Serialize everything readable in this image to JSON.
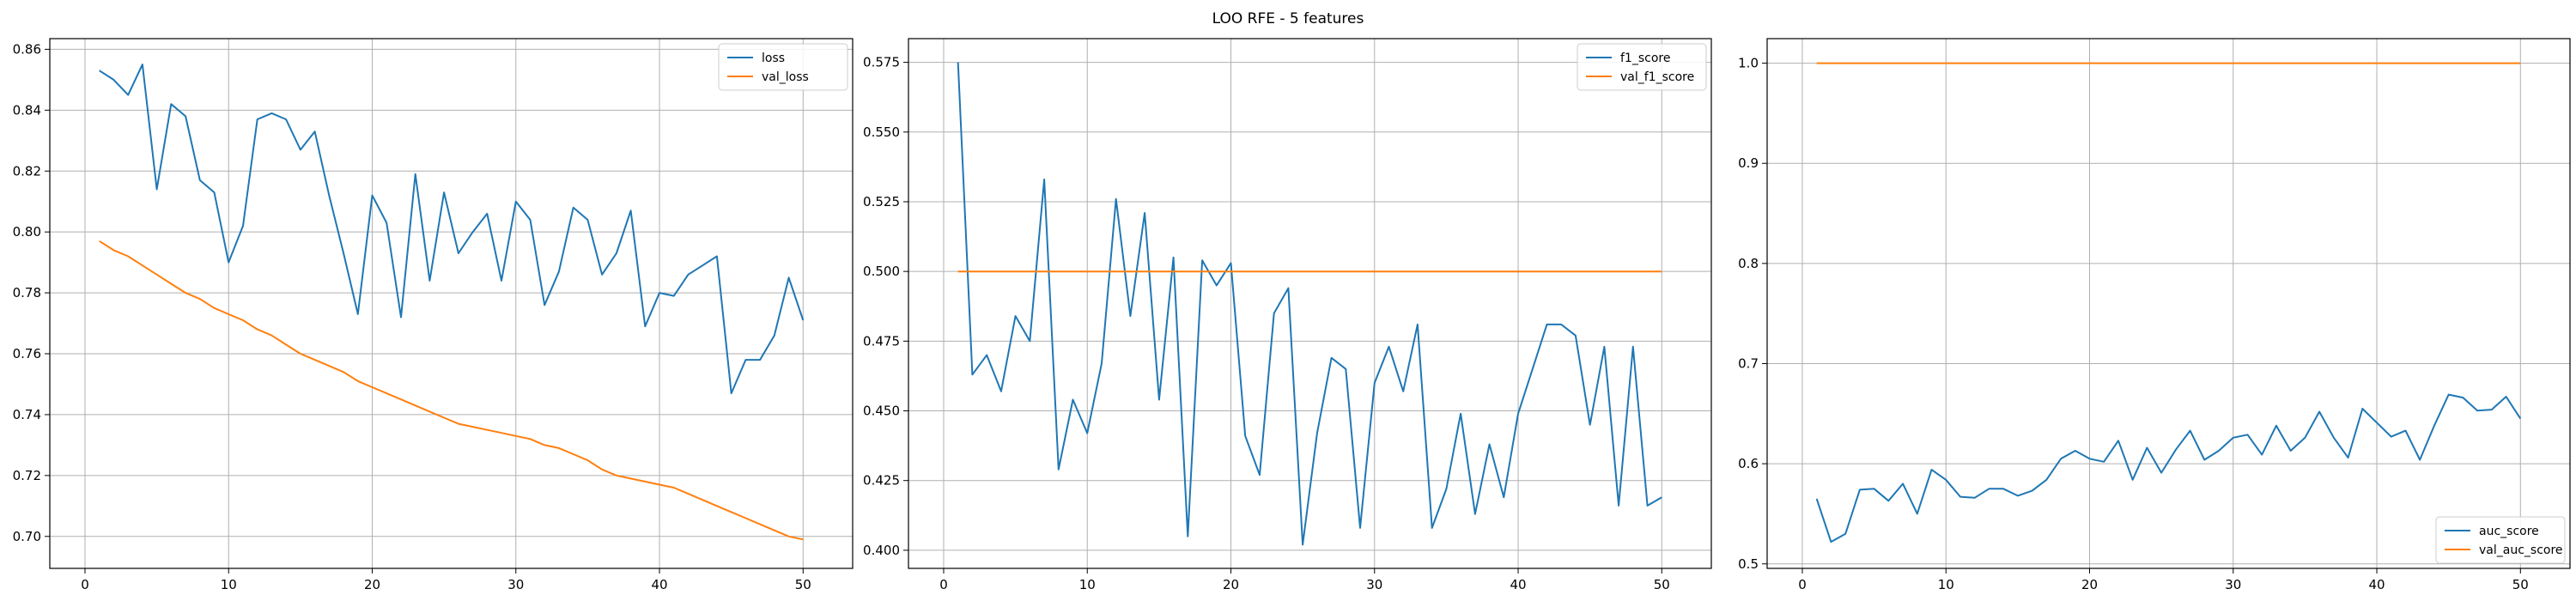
{
  "figure": {
    "suptitle": "LOO RFE - 5 features",
    "colors": {
      "series1": "#1f77b4",
      "series2": "#ff7f0e",
      "grid": "#b0b0b0",
      "axis": "#000000"
    }
  },
  "chart_data": [
    {
      "type": "line",
      "title": "",
      "xlabel": "",
      "ylabel": "",
      "grid": true,
      "legend_position": "top-right",
      "xlim": [
        -2.45,
        53.45
      ],
      "ylim": [
        0.6895,
        0.8635
      ],
      "xticks": [
        0,
        10,
        20,
        30,
        40,
        50
      ],
      "yticks": [
        0.7,
        0.72,
        0.74,
        0.76,
        0.78,
        0.8,
        0.82,
        0.84,
        0.86
      ],
      "ytick_decimals": 2,
      "x": [
        1,
        2,
        3,
        4,
        5,
        6,
        7,
        8,
        9,
        10,
        11,
        12,
        13,
        14,
        15,
        16,
        17,
        18,
        19,
        20,
        21,
        22,
        23,
        24,
        25,
        26,
        27,
        28,
        29,
        30,
        31,
        32,
        33,
        34,
        35,
        36,
        37,
        38,
        39,
        40,
        41,
        42,
        43,
        44,
        45,
        46,
        47,
        48,
        49,
        50
      ],
      "series": [
        {
          "name": "loss",
          "color": "#1f77b4",
          "values": [
            0.853,
            0.85,
            0.845,
            0.855,
            0.814,
            0.842,
            0.838,
            0.817,
            0.813,
            0.79,
            0.802,
            0.837,
            0.839,
            0.837,
            0.827,
            0.833,
            0.812,
            0.793,
            0.773,
            0.812,
            0.803,
            0.772,
            0.819,
            0.784,
            0.813,
            0.793,
            0.8,
            0.806,
            0.784,
            0.81,
            0.804,
            0.776,
            0.787,
            0.808,
            0.804,
            0.786,
            0.793,
            0.807,
            0.769,
            0.78,
            0.779,
            0.786,
            0.789,
            0.792,
            0.747,
            0.758,
            0.758,
            0.766,
            0.785,
            0.771
          ]
        },
        {
          "name": "val_loss",
          "color": "#ff7f0e",
          "values": [
            0.797,
            0.794,
            0.792,
            0.789,
            0.786,
            0.783,
            0.78,
            0.778,
            0.775,
            0.773,
            0.771,
            0.768,
            0.766,
            0.763,
            0.76,
            0.758,
            0.756,
            0.754,
            0.751,
            0.749,
            0.747,
            0.745,
            0.743,
            0.741,
            0.739,
            0.737,
            0.736,
            0.735,
            0.734,
            0.733,
            0.732,
            0.73,
            0.729,
            0.727,
            0.725,
            0.722,
            0.72,
            0.719,
            0.718,
            0.717,
            0.716,
            0.714,
            0.712,
            0.71,
            0.708,
            0.706,
            0.704,
            0.702,
            0.7,
            0.699
          ]
        }
      ]
    },
    {
      "type": "line",
      "title": "",
      "xlabel": "",
      "ylabel": "",
      "grid": true,
      "legend_position": "top-right",
      "xlim": [
        -2.45,
        53.45
      ],
      "ylim": [
        0.3935,
        0.5835
      ],
      "xticks": [
        0,
        10,
        20,
        30,
        40,
        50
      ],
      "yticks": [
        0.4,
        0.425,
        0.45,
        0.475,
        0.5,
        0.525,
        0.55,
        0.575
      ],
      "ytick_decimals": 3,
      "x": [
        1,
        2,
        3,
        4,
        5,
        6,
        7,
        8,
        9,
        10,
        11,
        12,
        13,
        14,
        15,
        16,
        17,
        18,
        19,
        20,
        21,
        22,
        23,
        24,
        25,
        26,
        27,
        28,
        29,
        30,
        31,
        32,
        33,
        34,
        35,
        36,
        37,
        38,
        39,
        40,
        41,
        42,
        43,
        44,
        45,
        46,
        47,
        48,
        49,
        50
      ],
      "series": [
        {
          "name": "f1_score",
          "color": "#1f77b4",
          "values": [
            0.575,
            0.463,
            0.47,
            0.457,
            0.484,
            0.475,
            0.533,
            0.429,
            0.454,
            0.442,
            0.467,
            0.526,
            0.484,
            0.521,
            0.454,
            0.505,
            0.405,
            0.504,
            0.495,
            0.503,
            0.441,
            0.427,
            0.485,
            0.494,
            0.402,
            0.442,
            0.469,
            0.465,
            0.408,
            0.46,
            0.473,
            0.457,
            0.481,
            0.408,
            0.422,
            0.449,
            0.413,
            0.438,
            0.419,
            0.449,
            0.465,
            0.481,
            0.481,
            0.477,
            0.445,
            0.473,
            0.416,
            0.473,
            0.416,
            0.419
          ]
        },
        {
          "name": "val_f1_score",
          "color": "#ff7f0e",
          "values": [
            0.5,
            0.5,
            0.5,
            0.5,
            0.5,
            0.5,
            0.5,
            0.5,
            0.5,
            0.5,
            0.5,
            0.5,
            0.5,
            0.5,
            0.5,
            0.5,
            0.5,
            0.5,
            0.5,
            0.5,
            0.5,
            0.5,
            0.5,
            0.5,
            0.5,
            0.5,
            0.5,
            0.5,
            0.5,
            0.5,
            0.5,
            0.5,
            0.5,
            0.5,
            0.5,
            0.5,
            0.5,
            0.5,
            0.5,
            0.5,
            0.5,
            0.5,
            0.5,
            0.5,
            0.5,
            0.5,
            0.5,
            0.5,
            0.5,
            0.5
          ]
        }
      ]
    },
    {
      "type": "line",
      "title": "",
      "xlabel": "",
      "ylabel": "",
      "grid": true,
      "legend_position": "bottom-right",
      "xlim": [
        -2.45,
        53.45
      ],
      "ylim": [
        0.4955,
        1.0245
      ],
      "xticks": [
        0,
        10,
        20,
        30,
        40,
        50
      ],
      "yticks": [
        0.5,
        0.6,
        0.7,
        0.8,
        0.9,
        1.0
      ],
      "ytick_decimals": 1,
      "x": [
        1,
        2,
        3,
        4,
        5,
        6,
        7,
        8,
        9,
        10,
        11,
        12,
        13,
        14,
        15,
        16,
        17,
        18,
        19,
        20,
        21,
        22,
        23,
        24,
        25,
        26,
        27,
        28,
        29,
        30,
        31,
        32,
        33,
        34,
        35,
        36,
        37,
        38,
        39,
        40,
        41,
        42,
        43,
        44,
        45,
        46,
        47,
        48,
        49,
        50
      ],
      "series": [
        {
          "name": "auc_score",
          "color": "#1f77b4",
          "values": [
            0.565,
            0.522,
            0.53,
            0.574,
            0.575,
            0.563,
            0.58,
            0.55,
            0.594,
            0.584,
            0.567,
            0.566,
            0.575,
            0.575,
            0.568,
            0.573,
            0.584,
            0.605,
            0.613,
            0.605,
            0.602,
            0.623,
            0.584,
            0.616,
            0.591,
            0.614,
            0.633,
            0.604,
            0.613,
            0.626,
            0.629,
            0.609,
            0.638,
            0.613,
            0.626,
            0.652,
            0.626,
            0.606,
            0.655,
            0.641,
            0.627,
            0.633,
            0.604,
            0.638,
            0.669,
            0.666,
            0.653,
            0.654,
            0.667,
            0.645
          ]
        },
        {
          "name": "val_auc_score",
          "color": "#ff7f0e",
          "values": [
            1.0,
            1.0,
            1.0,
            1.0,
            1.0,
            1.0,
            1.0,
            1.0,
            1.0,
            1.0,
            1.0,
            1.0,
            1.0,
            1.0,
            1.0,
            1.0,
            1.0,
            1.0,
            1.0,
            1.0,
            1.0,
            1.0,
            1.0,
            1.0,
            1.0,
            1.0,
            1.0,
            1.0,
            1.0,
            1.0,
            1.0,
            1.0,
            1.0,
            1.0,
            1.0,
            1.0,
            1.0,
            1.0,
            1.0,
            1.0,
            1.0,
            1.0,
            1.0,
            1.0,
            1.0,
            1.0,
            1.0,
            1.0,
            1.0,
            1.0
          ]
        }
      ]
    }
  ]
}
